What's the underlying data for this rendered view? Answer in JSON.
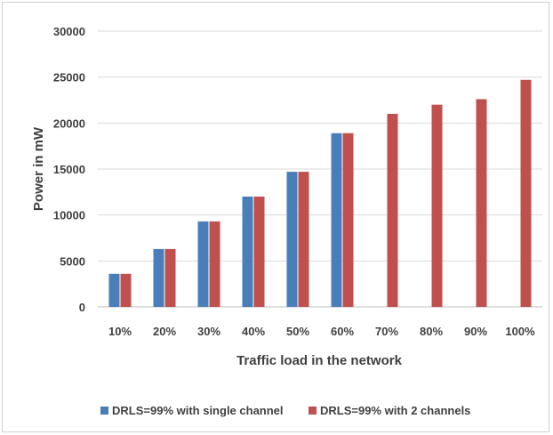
{
  "chart_data": {
    "type": "bar",
    "title": "",
    "xlabel": "Traffic load in the network",
    "ylabel": "Power in mW",
    "ylim": [
      0,
      30000
    ],
    "yticks": [
      0,
      5000,
      10000,
      15000,
      20000,
      25000,
      30000
    ],
    "grid": true,
    "legend_position": "bottom",
    "categories": [
      "10%",
      "20%",
      "30%",
      "40%",
      "50%",
      "60%",
      "70%",
      "80%",
      "90%",
      "100%"
    ],
    "series": [
      {
        "name": "DRLS=99% with single channel",
        "color": "#4a7ebb",
        "values": [
          3600,
          6300,
          9300,
          12000,
          14700,
          18900,
          null,
          null,
          null,
          null
        ]
      },
      {
        "name": "DRLS=99% with 2 channels",
        "color": "#c0504d",
        "values": [
          3600,
          6300,
          9300,
          12000,
          14700,
          18900,
          21000,
          22000,
          22600,
          24700
        ]
      }
    ]
  }
}
